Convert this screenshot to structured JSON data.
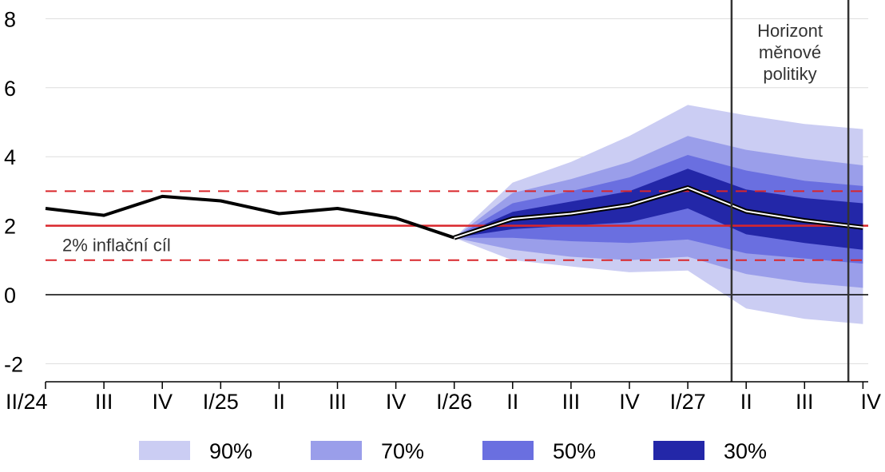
{
  "chart_data": {
    "type": "area",
    "categories": [
      "II/24",
      "III",
      "IV",
      "I/25",
      "II",
      "III",
      "IV",
      "I/26",
      "II",
      "III",
      "IV",
      "I/27",
      "II",
      "III",
      "IV"
    ],
    "ylim": [
      -2.3,
      8.3
    ],
    "yticks": [
      -2,
      0,
      2,
      4,
      6,
      8
    ],
    "ytick_labels": [
      "-2",
      "0",
      "2",
      "4",
      "6",
      "8"
    ],
    "grid": true,
    "series": [
      {
        "name": "",
        "values": [
          2.5,
          2.3,
          2.85,
          2.72,
          2.35,
          2.5,
          2.22,
          1.65,
          2.2,
          2.35,
          2.6,
          3.1,
          2.42,
          2.15,
          1.95
        ]
      }
    ],
    "fan": {
      "start_index": 7,
      "x_indices": [
        7,
        8,
        9,
        10,
        11,
        12,
        13,
        14
      ],
      "bands": [
        {
          "name": "90%",
          "color": "#cbcdf3",
          "lower": [
            1.65,
            1.0,
            0.82,
            0.65,
            0.7,
            -0.4,
            -0.7,
            -0.85
          ],
          "upper": [
            1.65,
            3.25,
            3.85,
            4.6,
            5.5,
            5.2,
            4.95,
            4.8
          ]
        },
        {
          "name": "70%",
          "color": "#9a9eea",
          "lower": [
            1.65,
            1.3,
            1.1,
            1.0,
            1.1,
            0.6,
            0.35,
            0.2
          ],
          "upper": [
            1.65,
            2.95,
            3.35,
            3.85,
            4.6,
            4.2,
            3.95,
            3.75
          ]
        },
        {
          "name": "50%",
          "color": "#6a6fe0",
          "lower": [
            1.65,
            1.65,
            1.55,
            1.5,
            1.6,
            1.2,
            1.05,
            0.9
          ],
          "upper": [
            1.65,
            2.65,
            3.0,
            3.4,
            4.05,
            3.6,
            3.3,
            3.15
          ]
        },
        {
          "name": "30%",
          "color": "#2327a8",
          "lower": [
            1.65,
            1.9,
            2.0,
            2.1,
            2.5,
            1.75,
            1.5,
            1.3
          ],
          "upper": [
            1.65,
            2.4,
            2.7,
            3.0,
            3.65,
            3.05,
            2.8,
            2.65
          ]
        }
      ]
    },
    "target": {
      "value": 2,
      "band": [
        1,
        3
      ],
      "label": "2% inflační cíl",
      "color": "#d9262b"
    },
    "policy_horizon": {
      "from_index": 11.75,
      "to_index": 13.75,
      "label": [
        "Horizont",
        "měnové",
        "politiky"
      ]
    },
    "legend": {
      "position": "bottom",
      "items": [
        "90%",
        "70%",
        "50%",
        "30%"
      ]
    }
  }
}
